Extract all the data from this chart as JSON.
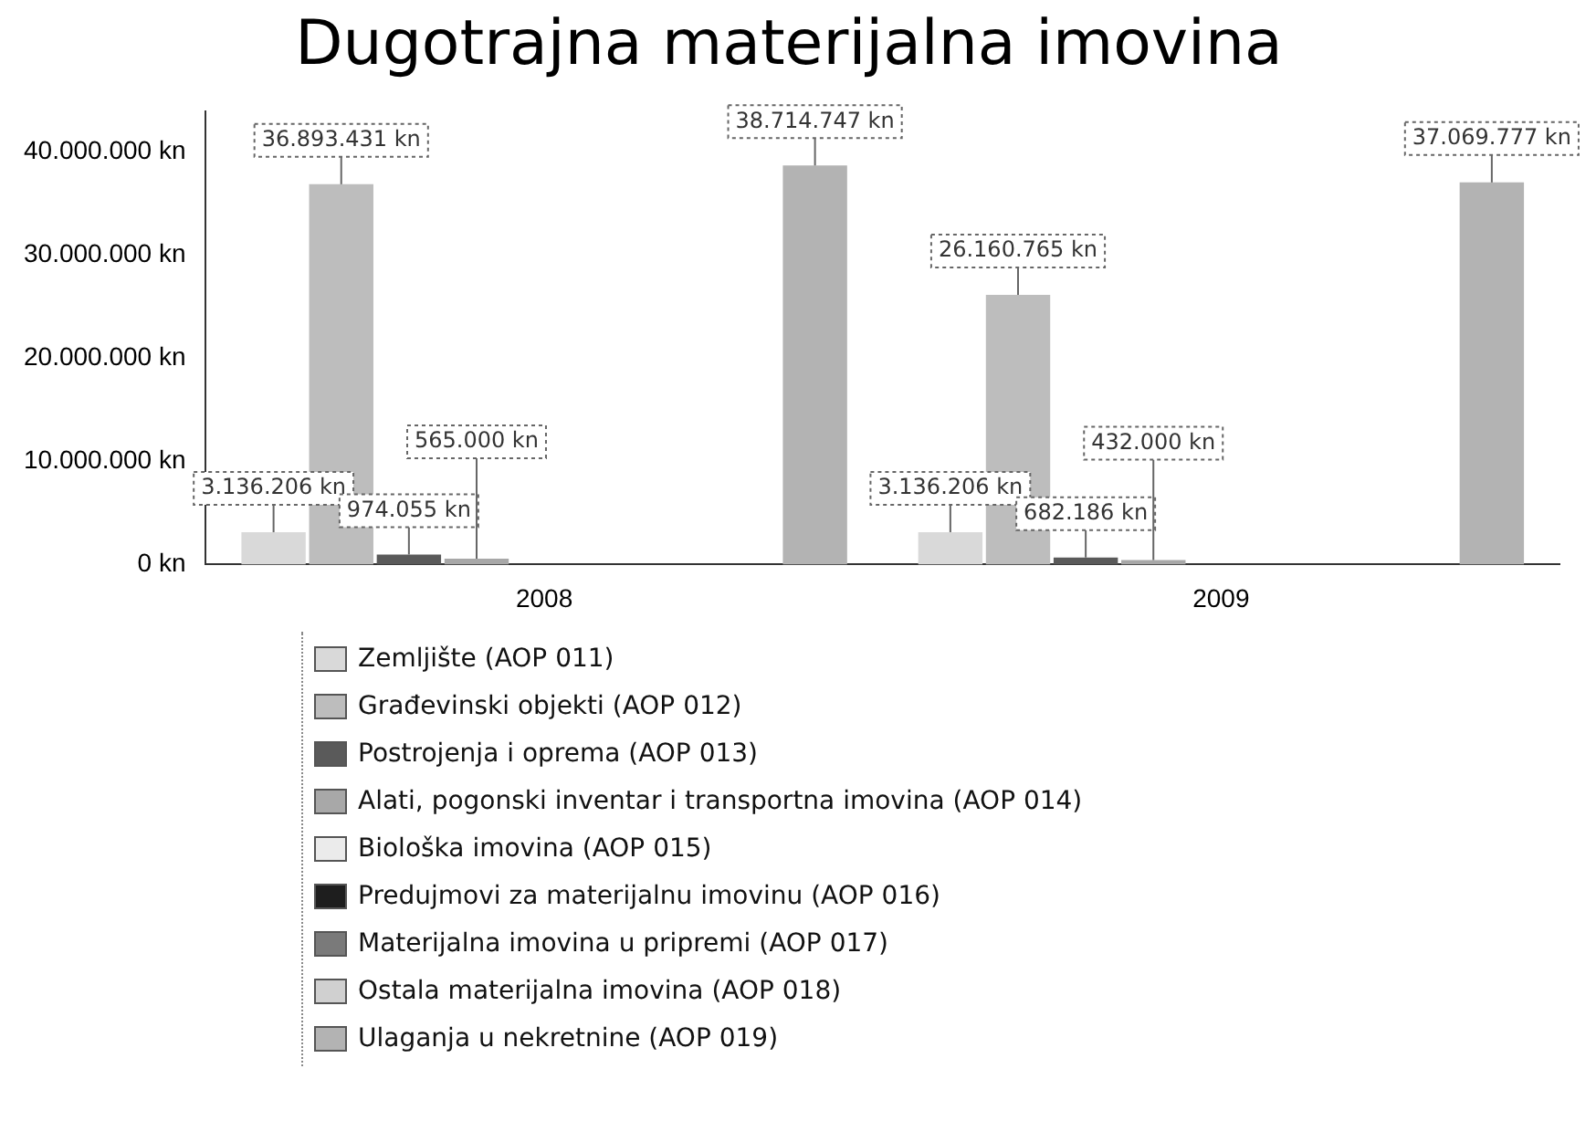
{
  "chart_data": {
    "type": "bar",
    "title": "Dugotrajna materijalna imovina",
    "categories": [
      "2008",
      "2009"
    ],
    "series": [
      {
        "name": "Zemljište (AOP 011)",
        "color": "#d9d9d9",
        "values": [
          3136206,
          3136206
        ],
        "value_labels": [
          "3.136.206 kn",
          "3.136.206 kn"
        ]
      },
      {
        "name": "Građevinski objekti (AOP 012)",
        "color": "#bdbdbd",
        "values": [
          36893431,
          26160765
        ],
        "value_labels": [
          "36.893.431 kn",
          "26.160.765 kn"
        ]
      },
      {
        "name": "Postrojenja i oprema (AOP 013)",
        "color": "#5a5a5a",
        "values": [
          974055,
          682186
        ],
        "value_labels": [
          "974.055 kn",
          "682.186 kn"
        ]
      },
      {
        "name": "Alati, pogonski inventar i transportna imovina (AOP 014)",
        "color": "#a8a8a8",
        "values": [
          565000,
          432000
        ],
        "value_labels": [
          "565.000 kn",
          "432.000 kn"
        ]
      },
      {
        "name": "Biološka imovina (AOP 015)",
        "color": "#ebebeb",
        "values": [
          0,
          0
        ]
      },
      {
        "name": "Predujmovi za materijalnu imovinu (AOP 016)",
        "color": "#1e1e1e",
        "values": [
          0,
          0
        ]
      },
      {
        "name": "Materijalna imovina u pripremi (AOP 017)",
        "color": "#7a7a7a",
        "values": [
          0,
          0
        ]
      },
      {
        "name": "Ostala materijalna imovina (AOP 018)",
        "color": "#d0d0d0",
        "values": [
          0,
          0
        ]
      },
      {
        "name": "Ulaganja u nekretnine (AOP 019)",
        "color": "#b3b3b3",
        "values": [
          38714747,
          37069777
        ],
        "value_labels": [
          "38.714.747 kn",
          "37.069.777 kn"
        ]
      }
    ],
    "ylim": [
      0,
      44000000
    ],
    "yticks": [
      {
        "value": 0,
        "label": "0 kn"
      },
      {
        "value": 10000000,
        "label": "10.000.000 kn"
      },
      {
        "value": 20000000,
        "label": "20.000.000 kn"
      },
      {
        "value": 30000000,
        "label": "30.000.000 kn"
      },
      {
        "value": 40000000,
        "label": "40.000.000 kn"
      }
    ],
    "grid": false,
    "legend": "bottom"
  }
}
